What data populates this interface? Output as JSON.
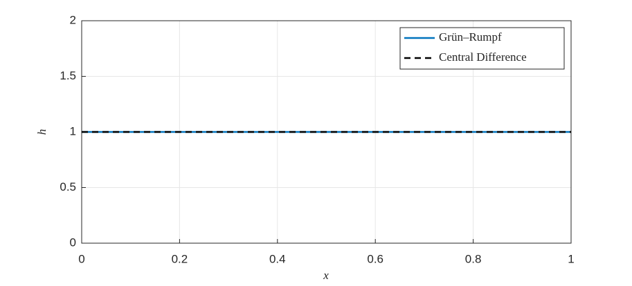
{
  "chart_data": {
    "type": "line",
    "xlabel": "x",
    "ylabel": "h",
    "x": [
      0,
      1
    ],
    "series": [
      {
        "name": "Grün–Rumpf",
        "color": "#0072bd",
        "style": "solid",
        "values": [
          1,
          1
        ]
      },
      {
        "name": "Central Difference",
        "color": "#000000",
        "style": "dashed",
        "values": [
          1,
          1
        ]
      }
    ],
    "xlim": [
      0,
      1
    ],
    "xticks": [
      0,
      0.2,
      0.4,
      0.6,
      0.8,
      1
    ],
    "ylim": [
      0,
      2
    ],
    "yticks": [
      0,
      0.5,
      1,
      1.5,
      2
    ],
    "grid": true,
    "legend": "northeast"
  }
}
